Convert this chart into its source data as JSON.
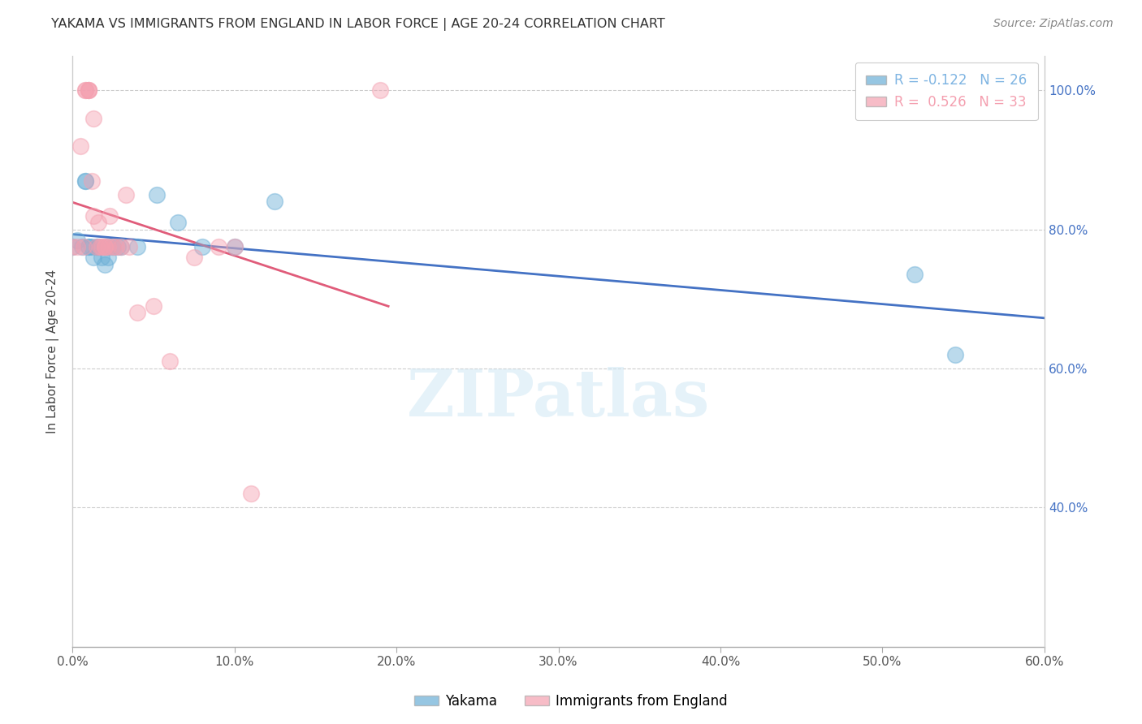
{
  "title": "YAKAMA VS IMMIGRANTS FROM ENGLAND IN LABOR FORCE | AGE 20-24 CORRELATION CHART",
  "source": "Source: ZipAtlas.com",
  "ylabel": "In Labor Force | Age 20-24",
  "watermark": "ZIPatlas",
  "xmin": 0.0,
  "xmax": 0.6,
  "ymin": 0.2,
  "ymax": 1.05,
  "xticks": [
    0.0,
    0.1,
    0.2,
    0.3,
    0.4,
    0.5,
    0.6
  ],
  "yticks": [
    0.4,
    0.6,
    0.8,
    1.0
  ],
  "ytick_labels": [
    "40.0%",
    "60.0%",
    "80.0%",
    "100.0%"
  ],
  "xtick_labels": [
    "0.0%",
    "10.0%",
    "20.0%",
    "30.0%",
    "40.0%",
    "50.0%",
    "60.0%"
  ],
  "legend_entries": [
    {
      "label": "R = -0.122   N = 26",
      "color": "#7EB4E2"
    },
    {
      "label": "R =  0.526   N = 33",
      "color": "#F4A0B0"
    }
  ],
  "legend_labels_bottom": [
    "Yakama",
    "Immigrants from England"
  ],
  "blue_color": "#6aaed6",
  "pink_color": "#f4a0b0",
  "blue_line_color": "#4472C4",
  "pink_line_color": "#E05C7A",
  "blue_x": [
    0.0,
    0.003,
    0.006,
    0.008,
    0.008,
    0.01,
    0.01,
    0.012,
    0.013,
    0.015,
    0.016,
    0.018,
    0.02,
    0.022,
    0.022,
    0.025,
    0.028,
    0.03,
    0.04,
    0.052,
    0.065,
    0.08,
    0.1,
    0.125,
    0.52,
    0.545
  ],
  "blue_y": [
    0.775,
    0.785,
    0.775,
    0.87,
    0.87,
    0.775,
    0.775,
    0.775,
    0.76,
    0.775,
    0.775,
    0.76,
    0.75,
    0.775,
    0.76,
    0.775,
    0.775,
    0.775,
    0.775,
    0.85,
    0.81,
    0.775,
    0.775,
    0.84,
    0.735,
    0.62
  ],
  "pink_x": [
    0.0,
    0.003,
    0.005,
    0.007,
    0.008,
    0.008,
    0.01,
    0.01,
    0.01,
    0.012,
    0.013,
    0.013,
    0.015,
    0.016,
    0.017,
    0.018,
    0.02,
    0.02,
    0.022,
    0.023,
    0.025,
    0.027,
    0.03,
    0.033,
    0.035,
    0.04,
    0.05,
    0.06,
    0.075,
    0.09,
    0.1,
    0.11,
    0.19
  ],
  "pink_y": [
    0.775,
    0.775,
    0.92,
    0.775,
    1.0,
    1.0,
    1.0,
    1.0,
    1.0,
    0.87,
    0.96,
    0.82,
    0.775,
    0.81,
    0.775,
    0.775,
    0.775,
    0.775,
    0.775,
    0.82,
    0.775,
    0.775,
    0.775,
    0.85,
    0.775,
    0.68,
    0.69,
    0.61,
    0.76,
    0.775,
    0.775,
    0.42,
    1.0
  ]
}
